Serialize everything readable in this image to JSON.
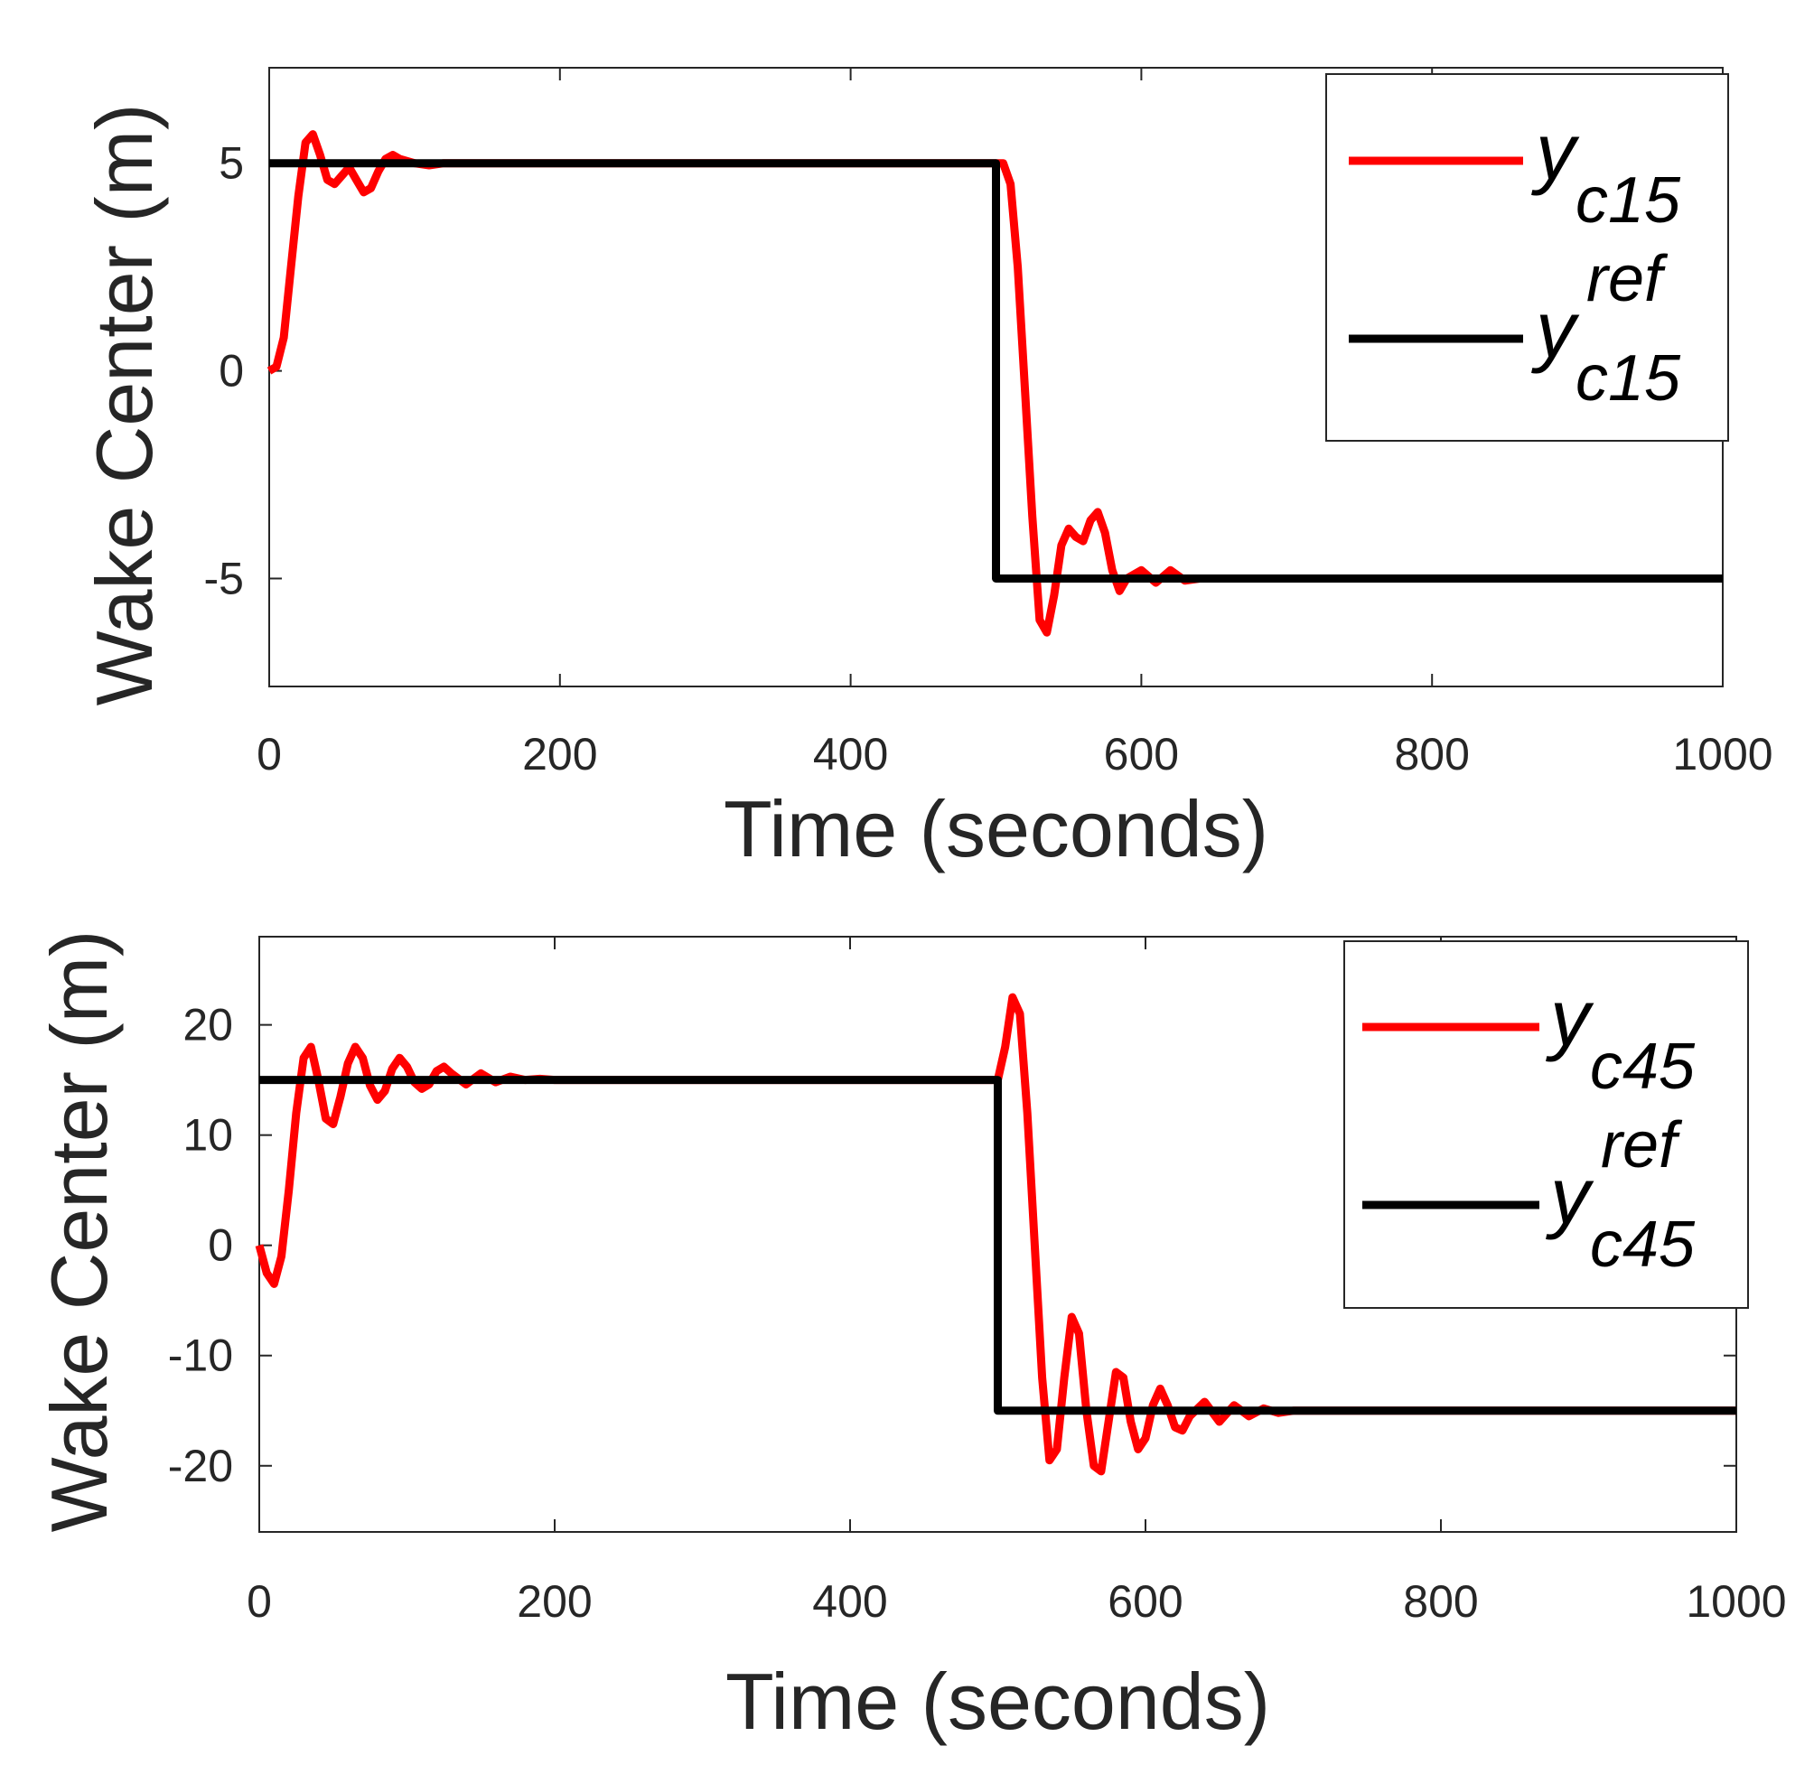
{
  "chart_data": [
    {
      "type": "line",
      "xlabel": "Time (seconds)",
      "ylabel": "Wake Center (m)",
      "xlim": [
        0,
        1000
      ],
      "ylim": [
        -7.6,
        7.3
      ],
      "x_ticks": [
        0,
        200,
        400,
        600,
        800,
        1000
      ],
      "x_tick_labels": [
        "0",
        "200",
        "400",
        "600",
        "800",
        "1000"
      ],
      "y_ticks": [
        -5,
        0,
        5
      ],
      "y_tick_labels": [
        "-5",
        "0",
        "5"
      ],
      "grid": false,
      "legend_position": "top-right",
      "series": [
        {
          "name": "yc15",
          "legend_base": "y",
          "legend_sub": "c15",
          "legend_sup": "",
          "color": "#ff0000",
          "x": [
            0,
            5,
            10,
            15,
            20,
            25,
            30,
            35,
            40,
            45,
            50,
            55,
            60,
            65,
            70,
            75,
            80,
            85,
            90,
            100,
            110,
            120,
            140,
            170,
            200,
            300,
            400,
            500,
            505,
            510,
            515,
            520,
            525,
            530,
            535,
            540,
            545,
            550,
            555,
            560,
            565,
            570,
            575,
            580,
            585,
            590,
            600,
            610,
            620,
            630,
            640,
            660,
            700,
            800,
            1000
          ],
          "y": [
            0,
            0.1,
            0.8,
            2.5,
            4.2,
            5.5,
            5.7,
            5.2,
            4.6,
            4.5,
            4.7,
            4.9,
            4.6,
            4.3,
            4.4,
            4.8,
            5.1,
            5.2,
            5.1,
            5.0,
            4.95,
            5.0,
            5.0,
            5.0,
            5.0,
            5.0,
            5.0,
            5.0,
            5.0,
            4.5,
            2.5,
            -0.5,
            -3.5,
            -6.0,
            -6.3,
            -5.4,
            -4.2,
            -3.8,
            -4.0,
            -4.1,
            -3.6,
            -3.4,
            -3.9,
            -4.8,
            -5.3,
            -5.0,
            -4.8,
            -5.1,
            -4.8,
            -5.05,
            -5.0,
            -5.0,
            -5.0,
            -5.0,
            -5.0
          ]
        },
        {
          "name": "yc15 ref",
          "legend_base": "y",
          "legend_sub": "c15",
          "legend_sup": "ref",
          "color": "#000000",
          "x": [
            0,
            500,
            500,
            1000
          ],
          "y": [
            5,
            5,
            -5,
            -5
          ]
        }
      ]
    },
    {
      "type": "line",
      "xlabel": "Time (seconds)",
      "ylabel": "Wake Center (m)",
      "xlim": [
        0,
        1000
      ],
      "ylim": [
        -26,
        28
      ],
      "x_ticks": [
        0,
        200,
        400,
        600,
        800,
        1000
      ],
      "x_tick_labels": [
        "0",
        "200",
        "400",
        "600",
        "800",
        "1000"
      ],
      "y_ticks": [
        -20,
        -10,
        0,
        10,
        20
      ],
      "y_tick_labels": [
        "-20",
        "-10",
        "0",
        "10",
        "20"
      ],
      "grid": false,
      "legend_position": "top-right",
      "series": [
        {
          "name": "yc45",
          "legend_base": "y",
          "legend_sub": "c45",
          "legend_sup": "",
          "color": "#ff0000",
          "x": [
            0,
            5,
            10,
            15,
            20,
            25,
            30,
            35,
            40,
            45,
            50,
            55,
            60,
            65,
            70,
            75,
            80,
            85,
            90,
            95,
            100,
            105,
            110,
            115,
            120,
            125,
            130,
            140,
            150,
            160,
            170,
            180,
            190,
            200,
            220,
            250,
            300,
            400,
            500,
            505,
            510,
            515,
            520,
            525,
            530,
            535,
            540,
            545,
            550,
            555,
            560,
            565,
            570,
            575,
            580,
            585,
            590,
            595,
            600,
            605,
            610,
            615,
            620,
            625,
            630,
            640,
            650,
            660,
            670,
            680,
            690,
            700,
            720,
            750,
            800,
            1000
          ],
          "y": [
            0,
            -2.5,
            -3.5,
            -1.0,
            5.0,
            12.0,
            17.0,
            18.0,
            15.0,
            11.5,
            11.0,
            13.5,
            16.5,
            18.0,
            17.0,
            14.5,
            13.2,
            14.0,
            16.0,
            17.0,
            16.2,
            14.8,
            14.2,
            14.6,
            15.8,
            16.2,
            15.6,
            14.6,
            15.6,
            14.8,
            15.3,
            15.0,
            15.1,
            15.0,
            15.0,
            15.0,
            15.0,
            15.0,
            15.0,
            18.0,
            22.5,
            21.0,
            12.0,
            0.0,
            -12.0,
            -19.5,
            -18.5,
            -12.0,
            -6.5,
            -8.0,
            -15.0,
            -20.0,
            -20.5,
            -16.0,
            -11.5,
            -12.0,
            -16.0,
            -18.5,
            -17.5,
            -14.5,
            -13.0,
            -14.5,
            -16.5,
            -16.8,
            -15.5,
            -14.2,
            -16.0,
            -14.5,
            -15.5,
            -14.8,
            -15.2,
            -15.0,
            -15.0,
            -15.0,
            -15.0,
            -15.0
          ]
        },
        {
          "name": "yc45 ref",
          "legend_base": "y",
          "legend_sub": "c45",
          "legend_sup": "ref",
          "color": "#000000",
          "x": [
            0,
            500,
            500,
            1000
          ],
          "y": [
            15,
            15,
            -15,
            -15
          ]
        }
      ]
    }
  ]
}
